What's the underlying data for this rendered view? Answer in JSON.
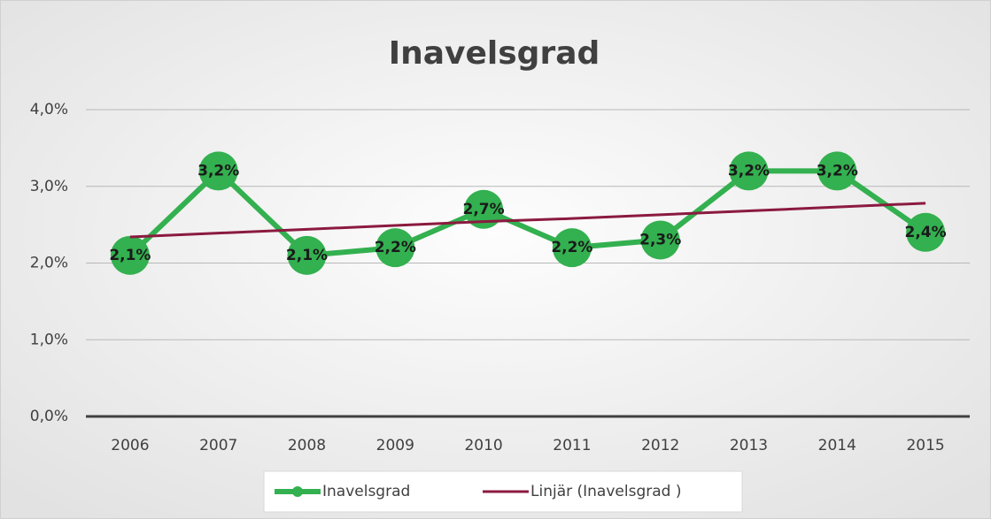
{
  "chart_data": {
    "type": "line",
    "title": "Inavelsgrad",
    "categories": [
      "2006",
      "2007",
      "2008",
      "2009",
      "2010",
      "2011",
      "2012",
      "2013",
      "2014",
      "2015"
    ],
    "series": [
      {
        "name": "Inavelsgrad",
        "color": "#33b04f",
        "values": [
          2.1,
          3.2,
          2.1,
          2.2,
          2.7,
          2.2,
          2.3,
          3.2,
          3.2,
          2.4
        ],
        "value_labels": [
          "2,1%",
          "3,2%",
          "2,1%",
          "2,2%",
          "2,7%",
          "2,2%",
          "2,3%",
          "3,2%",
          "3,2%",
          "2,4%"
        ]
      },
      {
        "name": "Linjär (Inavelsgrad )",
        "color": "#8b1a3f",
        "values": [
          2.34,
          2.39,
          2.44,
          2.49,
          2.54,
          2.58,
          2.63,
          2.68,
          2.73,
          2.78
        ]
      }
    ],
    "ylim": [
      0,
      4
    ],
    "yticks": [
      {
        "value": 0,
        "label": "0,0%"
      },
      {
        "value": 1,
        "label": "1,0%"
      },
      {
        "value": 2,
        "label": "2,0%"
      },
      {
        "value": 3,
        "label": "3,0%"
      },
      {
        "value": 4,
        "label": "4,0%"
      }
    ],
    "grid": true,
    "legend": "bottom"
  }
}
